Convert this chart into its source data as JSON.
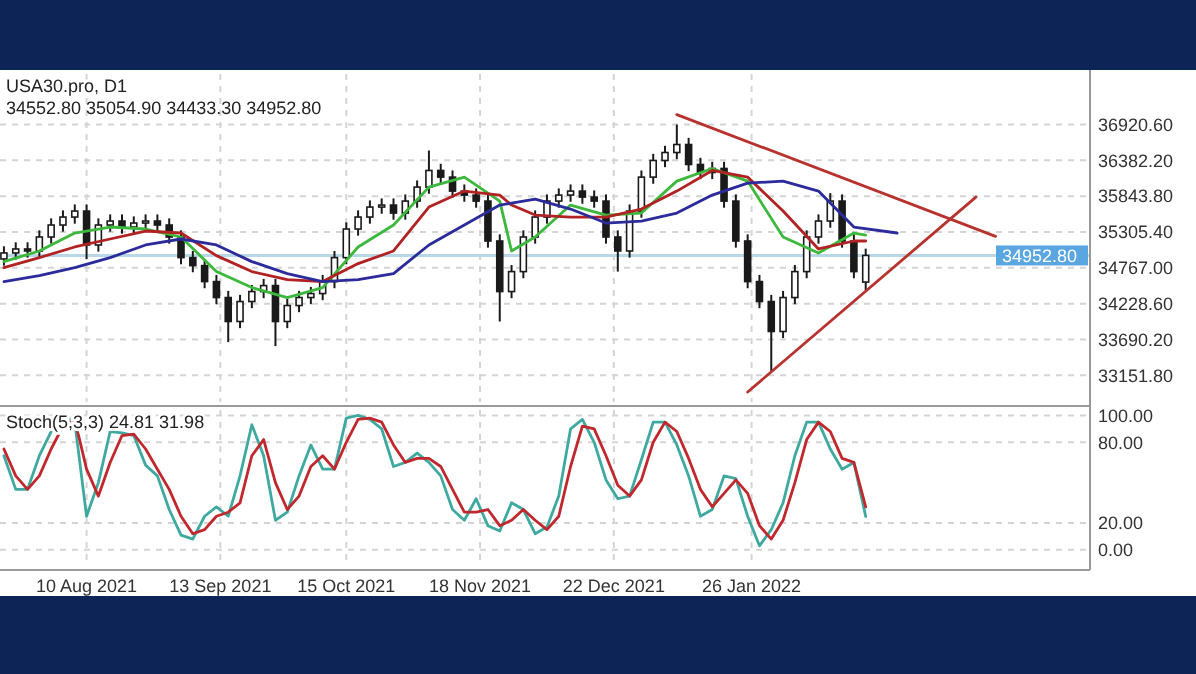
{
  "chart_data": [
    {
      "type": "candlestick",
      "title": "USA30.pro, D1",
      "subtitle": "34552.80 35054.90 34433.30 34952.80",
      "color": "#1a1a1a",
      "x": [
        "2021-07-20",
        "2021-07-23",
        "2021-07-26",
        "2021-07-29",
        "2021-08-01",
        "2021-08-04",
        "2021-08-07",
        "2021-08-10",
        "2021-08-13",
        "2021-08-16",
        "2021-08-19",
        "2021-08-22",
        "2021-08-25",
        "2021-08-28",
        "2021-08-31",
        "2021-09-03",
        "2021-09-06",
        "2021-09-09",
        "2021-09-12",
        "2021-09-15",
        "2021-09-18",
        "2021-09-21",
        "2021-09-24",
        "2021-09-27",
        "2021-09-30",
        "2021-10-03",
        "2021-10-06",
        "2021-10-09",
        "2021-10-12",
        "2021-10-15",
        "2021-10-18",
        "2021-10-21",
        "2021-10-24",
        "2021-10-27",
        "2021-10-30",
        "2021-11-02",
        "2021-11-05",
        "2021-11-08",
        "2021-11-11",
        "2021-11-14",
        "2021-11-17",
        "2021-11-20",
        "2021-11-23",
        "2021-11-26",
        "2021-11-29",
        "2021-12-02",
        "2021-12-05",
        "2021-12-08",
        "2021-12-11",
        "2021-12-14",
        "2021-12-17",
        "2021-12-20",
        "2021-12-23",
        "2021-12-26",
        "2021-12-29",
        "2022-01-01",
        "2022-01-04",
        "2022-01-07",
        "2022-01-10",
        "2022-01-13",
        "2022-01-16",
        "2022-01-19",
        "2022-01-22",
        "2022-01-25",
        "2022-01-28",
        "2022-01-31",
        "2022-02-03",
        "2022-02-06",
        "2022-02-09",
        "2022-02-12",
        "2022-02-15",
        "2022-02-18",
        "2022-02-21",
        "2022-02-24"
      ],
      "ohlc": [
        [
          34900,
          35090,
          34800,
          34990
        ],
        [
          34990,
          35150,
          34890,
          35050
        ],
        [
          35050,
          35150,
          34920,
          35020
        ],
        [
          35020,
          35330,
          34920,
          35230
        ],
        [
          35230,
          35510,
          35130,
          35410
        ],
        [
          35410,
          35630,
          35310,
          35530
        ],
        [
          35530,
          35720,
          35430,
          35620
        ],
        [
          35620,
          35720,
          34900,
          35110
        ],
        [
          35110,
          35510,
          35010,
          35410
        ],
        [
          35410,
          35570,
          35310,
          35470
        ],
        [
          35470,
          35570,
          35280,
          35380
        ],
        [
          35380,
          35540,
          35280,
          35440
        ],
        [
          35440,
          35570,
          35340,
          35470
        ],
        [
          35470,
          35570,
          35310,
          35410
        ],
        [
          35410,
          35510,
          35130,
          35230
        ],
        [
          35230,
          35330,
          34820,
          34920
        ],
        [
          34920,
          35020,
          34700,
          34800
        ],
        [
          34800,
          34900,
          34460,
          34560
        ],
        [
          34560,
          34660,
          34220,
          34320
        ],
        [
          34320,
          34420,
          33650,
          33960
        ],
        [
          33960,
          34360,
          33860,
          34260
        ],
        [
          34260,
          34510,
          34160,
          34410
        ],
        [
          34410,
          34600,
          34310,
          34500
        ],
        [
          34500,
          34600,
          33590,
          33960
        ],
        [
          33960,
          34300,
          33860,
          34200
        ],
        [
          34200,
          34420,
          34100,
          34320
        ],
        [
          34320,
          34480,
          34220,
          34380
        ],
        [
          34380,
          34660,
          34280,
          34560
        ],
        [
          34560,
          35020,
          34460,
          34920
        ],
        [
          34920,
          35450,
          34820,
          35350
        ],
        [
          35350,
          35630,
          35250,
          35530
        ],
        [
          35530,
          35780,
          35430,
          35680
        ],
        [
          35680,
          35810,
          35580,
          35710
        ],
        [
          35710,
          35810,
          35490,
          35590
        ],
        [
          35590,
          35870,
          35490,
          35770
        ],
        [
          35770,
          36080,
          35670,
          35980
        ],
        [
          35980,
          36530,
          35880,
          36230
        ],
        [
          36230,
          36330,
          36030,
          36130
        ],
        [
          36130,
          36230,
          35820,
          35920
        ],
        [
          35920,
          36020,
          35760,
          35860
        ],
        [
          35860,
          35960,
          35670,
          35770
        ],
        [
          35770,
          35870,
          35070,
          35170
        ],
        [
          35170,
          35270,
          33960,
          34410
        ],
        [
          34410,
          34810,
          34310,
          34710
        ],
        [
          34710,
          35330,
          34610,
          35230
        ],
        [
          35230,
          35630,
          35130,
          35530
        ],
        [
          35530,
          35870,
          35430,
          35770
        ],
        [
          35770,
          35960,
          35670,
          35860
        ],
        [
          35860,
          36020,
          35760,
          35920
        ],
        [
          35920,
          36020,
          35730,
          35830
        ],
        [
          35830,
          35930,
          35670,
          35770
        ],
        [
          35770,
          35870,
          35130,
          35230
        ],
        [
          35230,
          35330,
          34710,
          35020
        ],
        [
          35020,
          35720,
          34920,
          35620
        ],
        [
          35620,
          36230,
          35520,
          36130
        ],
        [
          36130,
          36480,
          36030,
          36380
        ],
        [
          36380,
          36600,
          36280,
          36500
        ],
        [
          36500,
          36920,
          36400,
          36620
        ],
        [
          36620,
          36720,
          36220,
          36320
        ],
        [
          36320,
          36420,
          36100,
          36200
        ],
        [
          36200,
          36360,
          36100,
          36260
        ],
        [
          36260,
          36360,
          35670,
          35770
        ],
        [
          35770,
          35870,
          35070,
          35170
        ],
        [
          35170,
          35270,
          34460,
          34560
        ],
        [
          34560,
          34660,
          34160,
          34260
        ],
        [
          34260,
          34360,
          33200,
          33810
        ],
        [
          33810,
          34420,
          33710,
          34320
        ],
        [
          34320,
          34810,
          34220,
          34710
        ],
        [
          34710,
          35330,
          34610,
          35230
        ],
        [
          35230,
          35570,
          35130,
          35470
        ],
        [
          35470,
          35890,
          35370,
          35770
        ],
        [
          35770,
          35870,
          35070,
          35170
        ],
        [
          35170,
          35270,
          34610,
          34710
        ],
        [
          34552.8,
          35054.9,
          34433.3,
          34952.8
        ]
      ],
      "series": [
        {
          "type": "line",
          "color": "#3cb83c",
          "x": [
            "2021-07-20",
            "2021-07-29",
            "2021-08-07",
            "2021-08-16",
            "2021-08-25",
            "2021-09-03",
            "2021-09-12",
            "2021-09-21",
            "2021-09-30",
            "2021-10-09",
            "2021-10-18",
            "2021-10-27",
            "2021-11-05",
            "2021-11-14",
            "2021-11-23",
            "2021-11-26",
            "2021-12-02",
            "2021-12-11",
            "2021-12-20",
            "2021-12-29",
            "2022-01-07",
            "2022-01-16",
            "2022-01-25",
            "2022-02-03",
            "2022-02-12",
            "2022-02-21",
            "2022-02-24"
          ],
          "values": [
            34860,
            35020,
            35290,
            35380,
            35350,
            35230,
            34710,
            34470,
            34320,
            34470,
            35080,
            35410,
            35980,
            36130,
            35770,
            35020,
            35230,
            35710,
            35560,
            35590,
            36070,
            36260,
            36070,
            35230,
            34990,
            35290,
            35260
          ]
        },
        {
          "type": "line",
          "color": "#b22222",
          "x": [
            "2021-07-20",
            "2021-07-29",
            "2021-08-07",
            "2021-08-16",
            "2021-08-25",
            "2021-09-03",
            "2021-09-12",
            "2021-09-21",
            "2021-09-30",
            "2021-10-09",
            "2021-10-18",
            "2021-10-27",
            "2021-11-05",
            "2021-11-14",
            "2021-11-23",
            "2021-11-26",
            "2021-12-02",
            "2021-12-11",
            "2021-12-20",
            "2021-12-29",
            "2022-01-07",
            "2022-01-16",
            "2022-01-25",
            "2022-02-03",
            "2022-02-12",
            "2022-02-21",
            "2022-02-24"
          ],
          "values": [
            34770,
            34920,
            35080,
            35200,
            35320,
            35290,
            34950,
            34710,
            34590,
            34560,
            34830,
            35020,
            35680,
            35920,
            35860,
            35710,
            35560,
            35530,
            35530,
            35650,
            35920,
            36230,
            36130,
            35620,
            35050,
            35170,
            35170
          ]
        },
        {
          "type": "line",
          "color": "#2b2b9b",
          "x": [
            "2021-07-20",
            "2021-07-29",
            "2021-08-07",
            "2021-08-16",
            "2021-08-25",
            "2021-09-03",
            "2021-09-12",
            "2021-09-21",
            "2021-09-30",
            "2021-10-09",
            "2021-10-18",
            "2021-10-27",
            "2021-11-05",
            "2021-11-14",
            "2021-11-23",
            "2021-11-26",
            "2021-12-02",
            "2021-12-11",
            "2021-12-20",
            "2021-12-29",
            "2022-01-07",
            "2022-01-16",
            "2022-01-25",
            "2022-02-03",
            "2022-02-12",
            "2022-02-21",
            "2022-03-04"
          ],
          "values": [
            34560,
            34650,
            34770,
            34920,
            35110,
            35200,
            35110,
            34860,
            34680,
            34560,
            34590,
            34680,
            35110,
            35410,
            35710,
            35740,
            35800,
            35650,
            35440,
            35470,
            35590,
            35860,
            36040,
            36070,
            35920,
            35380,
            35290
          ]
        },
        {
          "type": "line",
          "color": "#b8322e",
          "x": [
            "2022-01-07",
            "2022-03-29"
          ],
          "values": [
            37070,
            35240
          ]
        },
        {
          "type": "line",
          "color": "#b8322e",
          "x": [
            "2022-01-25",
            "2022-03-24"
          ],
          "values": [
            32900,
            35830
          ]
        }
      ],
      "xlim": [
        "2021-07-19",
        "2022-04-22"
      ],
      "xticks": [
        "2021-08-10",
        "2021-09-13",
        "2021-10-15",
        "2021-11-18",
        "2021-12-22",
        "2022-01-26"
      ],
      "ylim": [
        32750,
        37680
      ],
      "yticks": [
        {
          "value": 36920.6,
          "label": "36920.60"
        },
        {
          "value": 36382.2,
          "label": "36382.20"
        },
        {
          "value": 35843.8,
          "label": "35843.80"
        },
        {
          "value": 35305.4,
          "label": "35305.40"
        },
        {
          "value": 34767,
          "label": "34767.00"
        },
        {
          "value": 34228.6,
          "label": "34228.60"
        },
        {
          "value": 33690.2,
          "label": "33690.20"
        },
        {
          "value": 33151.8,
          "label": "33151.80"
        }
      ],
      "ref_lines": [
        {
          "axis": "y",
          "value": 34952.8,
          "label": "34952.80",
          "color": "#b8d8e8"
        }
      ],
      "grid": true,
      "tick_labels": "y"
    },
    {
      "type": "line",
      "title": "Stoch(5,3,3) 24.81 31.98",
      "x": [
        "2021-07-20",
        "2021-07-23",
        "2021-07-26",
        "2021-07-29",
        "2021-08-01",
        "2021-08-04",
        "2021-08-07",
        "2021-08-10",
        "2021-08-13",
        "2021-08-16",
        "2021-08-19",
        "2021-08-22",
        "2021-08-25",
        "2021-08-28",
        "2021-08-31",
        "2021-09-03",
        "2021-09-06",
        "2021-09-09",
        "2021-09-12",
        "2021-09-15",
        "2021-09-18",
        "2021-09-21",
        "2021-09-24",
        "2021-09-27",
        "2021-09-30",
        "2021-10-03",
        "2021-10-06",
        "2021-10-09",
        "2021-10-12",
        "2021-10-15",
        "2021-10-18",
        "2021-10-21",
        "2021-10-24",
        "2021-10-27",
        "2021-10-30",
        "2021-11-02",
        "2021-11-05",
        "2021-11-08",
        "2021-11-11",
        "2021-11-14",
        "2021-11-17",
        "2021-11-20",
        "2021-11-23",
        "2021-11-26",
        "2021-11-29",
        "2021-12-02",
        "2021-12-05",
        "2021-12-08",
        "2021-12-11",
        "2021-12-14",
        "2021-12-17",
        "2021-12-20",
        "2021-12-23",
        "2021-12-26",
        "2021-12-29",
        "2022-01-01",
        "2022-01-04",
        "2022-01-07",
        "2022-01-10",
        "2022-01-13",
        "2022-01-16",
        "2022-01-19",
        "2022-01-22",
        "2022-01-25",
        "2022-01-28",
        "2022-01-31",
        "2022-02-03",
        "2022-02-06",
        "2022-02-09",
        "2022-02-12",
        "2022-02-15",
        "2022-02-18",
        "2022-02-21",
        "2022-02-24"
      ],
      "series": [
        {
          "color": "#3fa9a0",
          "values": [
            70,
            45,
            45,
            70,
            88,
            100,
            95,
            25,
            50,
            88,
            87,
            85,
            63,
            55,
            30,
            11,
            8,
            25,
            32,
            25,
            55,
            93,
            70,
            22,
            28,
            55,
            78,
            60,
            60,
            98,
            100,
            97,
            90,
            62,
            65,
            72,
            65,
            55,
            30,
            22,
            38,
            18,
            14,
            35,
            30,
            12,
            17,
            40,
            90,
            97,
            80,
            52,
            38,
            40,
            67,
            95,
            95,
            78,
            55,
            25,
            30,
            55,
            53,
            25,
            3,
            15,
            35,
            70,
            95,
            95,
            75,
            60,
            65,
            24.81
          ]
        },
        {
          "color": "#c0282d",
          "values": [
            75,
            55,
            45,
            55,
            75,
            92,
            97,
            60,
            40,
            65,
            85,
            86,
            75,
            60,
            45,
            25,
            12,
            15,
            25,
            28,
            35,
            70,
            82,
            50,
            30,
            40,
            62,
            70,
            60,
            80,
            97,
            98,
            95,
            78,
            65,
            68,
            68,
            62,
            45,
            28,
            28,
            30,
            18,
            22,
            30,
            22,
            15,
            25,
            62,
            92,
            90,
            70,
            48,
            40,
            52,
            80,
            95,
            88,
            68,
            45,
            32,
            42,
            52,
            42,
            18,
            8,
            22,
            50,
            82,
            95,
            88,
            68,
            65,
            31.98
          ]
        }
      ],
      "xlim": [
        "2021-07-19",
        "2022-04-22"
      ],
      "xticks": [
        {
          "value": "2021-08-10",
          "label": "10 Aug 2021"
        },
        {
          "value": "2021-09-13",
          "label": "13 Sep 2021"
        },
        {
          "value": "2021-10-15",
          "label": "15 Oct 2021"
        },
        {
          "value": "2021-11-18",
          "label": "18 Nov 2021"
        },
        {
          "value": "2021-12-22",
          "label": "22 Dec 2021"
        },
        {
          "value": "2022-01-26",
          "label": "26 Jan 2022"
        }
      ],
      "ylim": [
        -12,
        104
      ],
      "yticks": [
        {
          "value": 0,
          "label": "0.00"
        },
        {
          "value": 20,
          "label": "20.00"
        },
        {
          "value": 80,
          "label": "80.00"
        },
        {
          "value": 100,
          "label": "100.00"
        }
      ],
      "grid": true
    }
  ]
}
